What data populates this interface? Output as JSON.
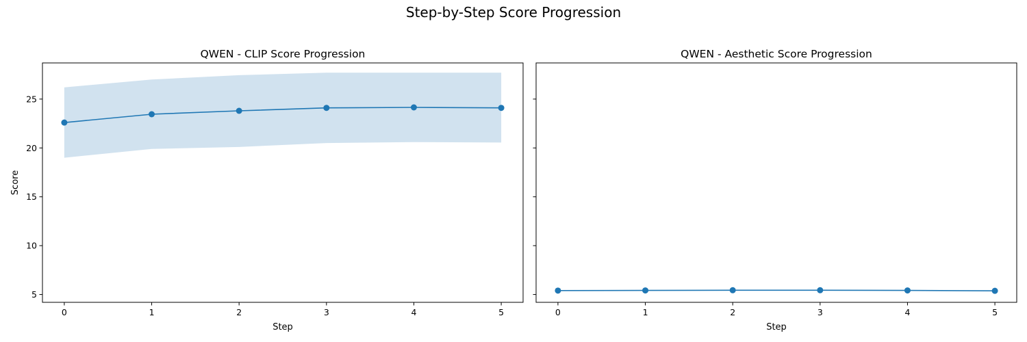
{
  "figure": {
    "title": "Step-by-Step Score Progression"
  },
  "colors": {
    "line": "#1f77b4",
    "band": "#c6dbeb"
  },
  "chart_data": [
    {
      "type": "line",
      "title": "QWEN - CLIP Score Progression",
      "xlabel": "Step",
      "ylabel": "Score",
      "x": [
        0,
        1,
        2,
        3,
        4,
        5
      ],
      "series": [
        {
          "values": [
            22.6,
            23.45,
            23.8,
            24.1,
            24.15,
            24.1
          ],
          "band_upper": [
            26.2,
            27.0,
            27.45,
            27.7,
            27.7,
            27.7
          ],
          "band_lower": [
            19.0,
            19.9,
            20.1,
            20.5,
            20.6,
            20.55
          ]
        }
      ],
      "xlim": [
        -0.25,
        5.25
      ],
      "ylim": [
        4.2,
        28.7
      ],
      "xticks": [
        "0",
        "1",
        "2",
        "3",
        "4",
        "5"
      ],
      "yticks": [
        "5",
        "10",
        "15",
        "20",
        "25"
      ],
      "grid": false
    },
    {
      "type": "line",
      "title": "QWEN - Aesthetic Score Progression",
      "xlabel": "Step",
      "ylabel": "",
      "x": [
        0,
        1,
        2,
        3,
        4,
        5
      ],
      "series": [
        {
          "values": [
            5.4,
            5.42,
            5.44,
            5.44,
            5.42,
            5.38
          ]
        }
      ],
      "xlim": [
        -0.25,
        5.25
      ],
      "ylim": [
        4.2,
        28.7
      ],
      "xticks": [
        "0",
        "1",
        "2",
        "3",
        "4",
        "5"
      ],
      "yticks": [],
      "shared_y": true,
      "grid": false
    }
  ]
}
